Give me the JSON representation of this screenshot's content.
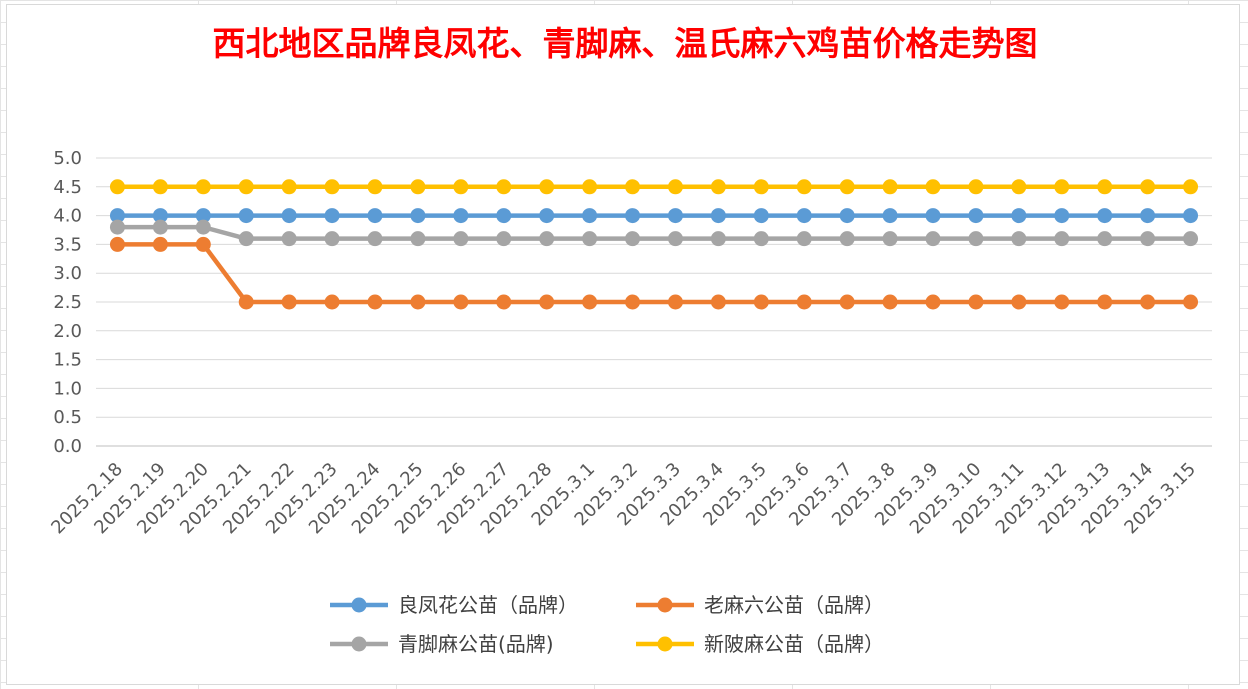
{
  "chart_data": {
    "type": "line",
    "title": "西北地区品牌良凤花、青脚麻、温氏麻六鸡苗价格走势图",
    "xlabel": "",
    "ylabel": "",
    "ylim": [
      0,
      5
    ],
    "yticks": [
      "0.0",
      "0.5",
      "1.0",
      "1.5",
      "2.0",
      "2.5",
      "3.0",
      "3.5",
      "4.0",
      "4.5",
      "5.0"
    ],
    "grid": true,
    "legend_position": "bottom",
    "categories": [
      "2025.2.18",
      "2025.2.19",
      "2025.2.20",
      "2025.2.21",
      "2025.2.22",
      "2025.2.23",
      "2025.2.24",
      "2025.2.25",
      "2025.2.26",
      "2025.2.27",
      "2025.2.28",
      "2025.3.1",
      "2025.3.2",
      "2025.3.3",
      "2025.3.4",
      "2025.3.5",
      "2025.3.6",
      "2025.3.7",
      "2025.3.8",
      "2025.3.9",
      "2025.3.10",
      "2025.3.11",
      "2025.3.12",
      "2025.3.13",
      "2025.3.14",
      "2025.3.15"
    ],
    "series": [
      {
        "name": "良凤花公苗（品牌）",
        "color": "#5b9bd5",
        "values": [
          4.0,
          4.0,
          4.0,
          4.0,
          4.0,
          4.0,
          4.0,
          4.0,
          4.0,
          4.0,
          4.0,
          4.0,
          4.0,
          4.0,
          4.0,
          4.0,
          4.0,
          4.0,
          4.0,
          4.0,
          4.0,
          4.0,
          4.0,
          4.0,
          4.0,
          4.0
        ]
      },
      {
        "name": "老麻六公苗（品牌）",
        "color": "#ed7d31",
        "values": [
          3.5,
          3.5,
          3.5,
          2.5,
          2.5,
          2.5,
          2.5,
          2.5,
          2.5,
          2.5,
          2.5,
          2.5,
          2.5,
          2.5,
          2.5,
          2.5,
          2.5,
          2.5,
          2.5,
          2.5,
          2.5,
          2.5,
          2.5,
          2.5,
          2.5,
          2.5
        ]
      },
      {
        "name": "青脚麻公苗(品牌)",
        "color": "#a5a5a5",
        "values": [
          3.8,
          3.8,
          3.8,
          3.6,
          3.6,
          3.6,
          3.6,
          3.6,
          3.6,
          3.6,
          3.6,
          3.6,
          3.6,
          3.6,
          3.6,
          3.6,
          3.6,
          3.6,
          3.6,
          3.6,
          3.6,
          3.6,
          3.6,
          3.6,
          3.6,
          3.6
        ]
      },
      {
        "name": "新陂麻公苗（品牌）",
        "color": "#ffc000",
        "values": [
          4.5,
          4.5,
          4.5,
          4.5,
          4.5,
          4.5,
          4.5,
          4.5,
          4.5,
          4.5,
          4.5,
          4.5,
          4.5,
          4.5,
          4.5,
          4.5,
          4.5,
          4.5,
          4.5,
          4.5,
          4.5,
          4.5,
          4.5,
          4.5,
          4.5,
          4.5
        ]
      }
    ]
  }
}
